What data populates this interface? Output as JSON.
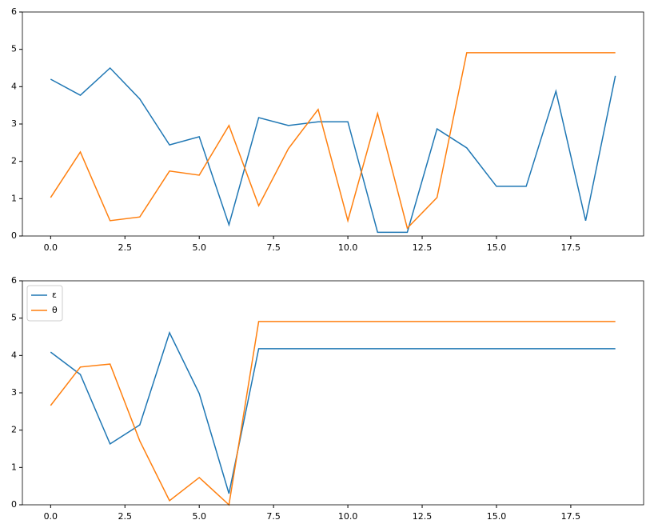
{
  "chart_data": [
    {
      "type": "line",
      "x": [
        0,
        1,
        2,
        3,
        4,
        5,
        6,
        7,
        8,
        9,
        10,
        11,
        12,
        13,
        14,
        15,
        16,
        17,
        18,
        19
      ],
      "series": [
        {
          "color": "#1f77b4",
          "values": [
            4.2,
            3.77,
            4.5,
            3.67,
            2.44,
            2.66,
            0.3,
            3.17,
            2.96,
            3.06,
            3.06,
            0.1,
            0.1,
            2.87,
            2.36,
            1.33,
            1.33,
            3.88,
            0.41,
            4.29
          ]
        },
        {
          "color": "#ff7f0e",
          "values": [
            1.03,
            2.25,
            0.41,
            0.51,
            1.74,
            1.63,
            2.96,
            0.81,
            2.34,
            3.39,
            0.41,
            3.28,
            0.21,
            1.03,
            4.91,
            4.91,
            4.91,
            4.91,
            4.91,
            4.91
          ]
        }
      ],
      "xlim": [
        -0.95,
        19.95
      ],
      "xticks": [
        {
          "value": 0,
          "label": "0.0"
        },
        2.5,
        {
          "value": 5,
          "label": "5.0"
        },
        7.5,
        {
          "value": 10,
          "label": "10.0"
        },
        12.5,
        {
          "value": 15,
          "label": "15.0"
        },
        17.5
      ],
      "ylim": [
        0,
        6
      ],
      "yticks": [
        0,
        1,
        2,
        3,
        4,
        5,
        6
      ]
    },
    {
      "type": "line",
      "x": [
        0,
        1,
        2,
        3,
        4,
        5,
        6,
        7,
        8,
        9,
        10,
        11,
        12,
        13,
        14,
        15,
        16,
        17,
        18,
        19
      ],
      "series": [
        {
          "name": "ε",
          "color": "#1f77b4",
          "values": [
            4.09,
            3.49,
            1.63,
            2.14,
            4.61,
            2.98,
            0.3,
            4.18,
            4.18,
            4.18,
            4.18,
            4.18,
            4.18,
            4.18,
            4.18,
            4.18,
            4.18,
            4.18,
            4.18,
            4.18
          ]
        },
        {
          "name": "θ",
          "color": "#ff7f0e",
          "values": [
            2.66,
            3.69,
            3.77,
            1.71,
            0.11,
            0.73,
            0,
            4.91,
            4.91,
            4.91,
            4.91,
            4.91,
            4.91,
            4.91,
            4.91,
            4.91,
            4.91,
            4.91,
            4.91,
            4.91
          ]
        }
      ],
      "xlim": [
        -0.95,
        19.95
      ],
      "xticks": [
        {
          "value": 0,
          "label": "0.0"
        },
        2.5,
        {
          "value": 5,
          "label": "5.0"
        },
        7.5,
        {
          "value": 10,
          "label": "10.0"
        },
        12.5,
        {
          "value": 15,
          "label": "15.0"
        },
        17.5
      ],
      "ylim": [
        0,
        6
      ],
      "yticks": [
        0,
        1,
        2,
        3,
        4,
        5,
        6
      ],
      "legend": "upper left"
    }
  ]
}
